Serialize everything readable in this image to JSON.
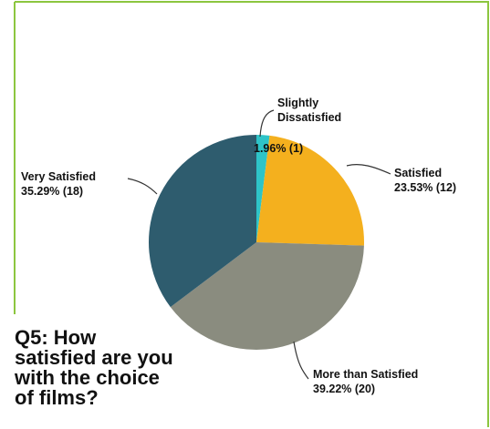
{
  "question_lines": [
    "Q5: How",
    "satisfied are you",
    "with the choice",
    "of films?"
  ],
  "colors": {
    "frame": "#8CC63F",
    "leader": "#333333"
  },
  "chart_data": {
    "type": "pie",
    "title": "Q5: How satisfied are you with the choice of films?",
    "series": [
      {
        "label_lines": [
          "Slightly",
          "Dissatisfied"
        ],
        "value_text": "1.96% (1)",
        "percent": 1.96,
        "count": 1,
        "color": "#2EC4C8"
      },
      {
        "label_lines": [
          "Satisfied"
        ],
        "value_text": "23.53% (12)",
        "percent": 23.53,
        "count": 12,
        "color": "#F4B01E"
      },
      {
        "label_lines": [
          "More than Satisfied"
        ],
        "value_text": "39.22% (20)",
        "percent": 39.22,
        "count": 20,
        "color": "#8A8C7F"
      },
      {
        "label_lines": [
          "Very Satisfied"
        ],
        "value_text": "35.29% (18)",
        "percent": 35.29,
        "count": 18,
        "color": "#2E5C6E"
      }
    ]
  }
}
